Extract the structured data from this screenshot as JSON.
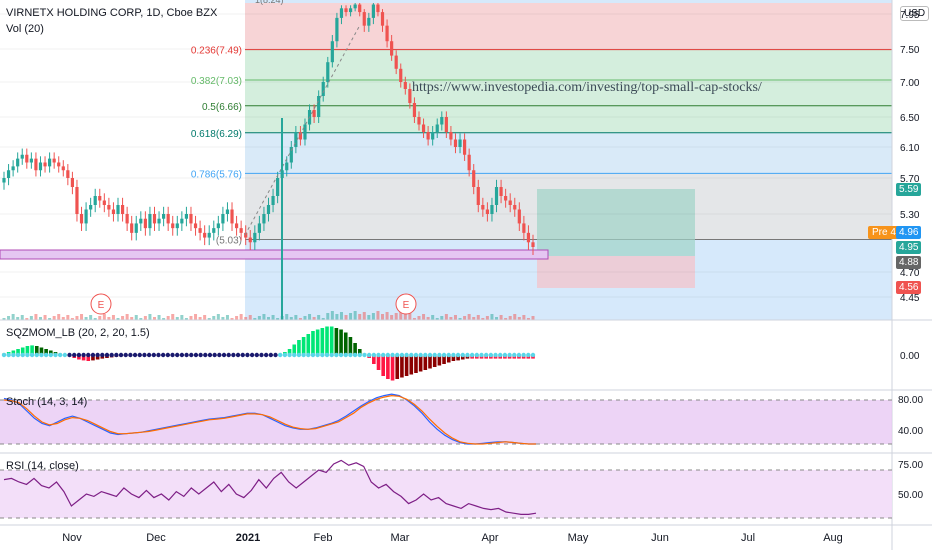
{
  "header": {
    "title": "VIRNETX HOLDING CORP, 1D, Cboe BZX",
    "vol_label": "Vol (20)",
    "currency": "USD"
  },
  "annotation_url": "https://www.investopedia.com/investing/top-small-cap-stocks/",
  "colors": {
    "up": "#26a69a",
    "down": "#ef5350",
    "blue_zone": "#bbdefb",
    "fib_red": "#fbd2d2",
    "fib_green": "#d4eed9",
    "fib_blue": "#d9eaf7",
    "fib_gray": "#e6e6e6",
    "purple": "#b04bb5",
    "stoch_band": "#e8c9f4",
    "rsi_band": "#f2dcf8"
  },
  "chart_data": [
    {
      "type": "candlestick",
      "pane": "price",
      "x_ticks": [
        "Nov",
        "Dec",
        "2021",
        "Feb",
        "Mar",
        "Apr",
        "May",
        "Jun",
        "Jul",
        "Aug"
      ],
      "y_ticks": [
        7.95,
        7.5,
        7.0,
        6.5,
        6.1,
        5.7,
        5.3,
        4.7,
        4.45
      ],
      "price_tags": [
        {
          "label": "5.59",
          "value": 5.59,
          "color": "#26a69a"
        },
        {
          "label": "4.96",
          "value": 4.96,
          "color": "#2196f3"
        },
        {
          "label": "4.95",
          "value": 4.95,
          "color": "#26a69a"
        },
        {
          "label": "4.88",
          "value": 4.88,
          "color": "#666666"
        },
        {
          "label": "4.56",
          "value": 4.56,
          "color": "#ef5350"
        }
      ],
      "premarket": {
        "label": "Pre",
        "value": "4.96"
      },
      "fib_levels": [
        {
          "ratio": "0.236",
          "price": 7.49,
          "label": "0.236(7.49)",
          "color": "#e53935"
        },
        {
          "ratio": "0.382",
          "price": 7.03,
          "label": "0.382(7.03)",
          "color": "#66bb6a"
        },
        {
          "ratio": "0.5",
          "price": 6.66,
          "label": "0.5(6.66)",
          "color": "#2e7d32"
        },
        {
          "ratio": "0.618",
          "price": 6.29,
          "label": "0.618(6.29)",
          "color": "#00796b"
        },
        {
          "ratio": "0.786",
          "price": 5.76,
          "label": "0.786(5.76)",
          "color": "#42a5f5"
        },
        {
          "ratio": "1",
          "price": 5.03,
          "label": "(5.03)",
          "color": "#777777"
        }
      ],
      "fib_top_label": "1(8.24)",
      "earnings_markers": [
        "E",
        "E"
      ],
      "closes": [
        5.7,
        5.8,
        5.85,
        5.95,
        6.0,
        5.9,
        5.95,
        5.8,
        5.9,
        5.85,
        5.95,
        5.9,
        5.85,
        5.8,
        5.7,
        5.6,
        5.3,
        5.2,
        5.35,
        5.4,
        5.5,
        5.45,
        5.4,
        5.35,
        5.3,
        5.4,
        5.3,
        5.2,
        5.1,
        5.2,
        5.25,
        5.15,
        5.3,
        5.2,
        5.25,
        5.3,
        5.2,
        5.15,
        5.2,
        5.25,
        5.3,
        5.2,
        5.15,
        5.1,
        5.05,
        5.1,
        5.15,
        5.2,
        5.3,
        5.35,
        5.2,
        5.15,
        5.1,
        5.05,
        5.0,
        5.1,
        5.2,
        5.3,
        5.4,
        5.5,
        5.7,
        5.8,
        5.9,
        6.1,
        6.3,
        6.2,
        6.4,
        6.6,
        6.5,
        6.8,
        7.0,
        7.3,
        7.6,
        7.9,
        8.1,
        8.0,
        8.1,
        8.2,
        8.0,
        7.8,
        7.9,
        8.2,
        8.0,
        7.8,
        7.6,
        7.4,
        7.2,
        7.0,
        6.9,
        6.7,
        6.5,
        6.4,
        6.3,
        6.2,
        6.3,
        6.4,
        6.5,
        6.3,
        6.2,
        6.1,
        6.2,
        6.0,
        5.8,
        5.6,
        5.4,
        5.35,
        5.3,
        5.4,
        5.6,
        5.5,
        5.45,
        5.4,
        5.35,
        5.2,
        5.1,
        5.0,
        4.95
      ],
      "ylim": [
        4.3,
        8.3
      ]
    },
    {
      "type": "histogram",
      "pane": "squeeze-momentum",
      "label": "SQZMOM_LB (20, 2, 20, 1.5)",
      "y_ticks": [
        "0.00"
      ],
      "values": [
        0.05,
        0.1,
        0.15,
        0.2,
        0.25,
        0.3,
        0.32,
        0.3,
        0.25,
        0.2,
        0.15,
        0.1,
        0.05,
        0.0,
        -0.05,
        -0.1,
        -0.15,
        -0.18,
        -0.2,
        -0.18,
        -0.15,
        -0.12,
        -0.1,
        -0.08,
        -0.06,
        -0.05,
        -0.04,
        -0.03,
        -0.03,
        -0.03,
        -0.03,
        -0.03,
        -0.03,
        -0.03,
        -0.03,
        -0.03,
        -0.03,
        -0.03,
        -0.03,
        -0.03,
        -0.03,
        -0.03,
        -0.03,
        -0.03,
        -0.03,
        -0.03,
        -0.03,
        -0.03,
        -0.03,
        -0.03,
        -0.03,
        -0.03,
        -0.03,
        -0.03,
        -0.03,
        -0.03,
        -0.03,
        -0.03,
        -0.03,
        0.05,
        0.1,
        0.2,
        0.35,
        0.5,
        0.6,
        0.7,
        0.8,
        0.85,
        0.9,
        0.95,
        0.95,
        0.9,
        0.85,
        0.75,
        0.6,
        0.4,
        0.2,
        0.05,
        -0.1,
        -0.3,
        -0.5,
        -0.7,
        -0.8,
        -0.85,
        -0.8,
        -0.75,
        -0.7,
        -0.65,
        -0.6,
        -0.55,
        -0.5,
        -0.45,
        -0.4,
        -0.35,
        -0.3,
        -0.25,
        -0.2,
        -0.18,
        -0.15,
        -0.12,
        -0.12,
        -0.12,
        -0.12,
        -0.12,
        -0.12,
        -0.12,
        -0.12,
        -0.12,
        -0.12,
        -0.12,
        -0.12,
        -0.12,
        -0.12,
        -0.12
      ]
    },
    {
      "type": "line",
      "pane": "stochastic",
      "label": "Stoch (14, 3, 14)",
      "y_ticks": [
        "80.00",
        "40.00"
      ],
      "ylim": [
        10,
        95
      ],
      "band": [
        20,
        80
      ],
      "k": [
        82,
        80,
        75,
        65,
        55,
        48,
        45,
        50,
        55,
        58,
        55,
        50,
        45,
        40,
        35,
        33,
        34,
        35,
        36,
        38,
        40,
        42,
        44,
        46,
        48,
        50,
        52,
        54,
        55,
        56,
        58,
        60,
        62,
        62,
        60,
        55,
        50,
        45,
        42,
        40,
        40,
        42,
        45,
        48,
        52,
        58,
        65,
        72,
        78,
        83,
        86,
        88,
        86,
        80,
        72,
        62,
        50,
        40,
        32,
        26,
        22,
        20,
        20,
        21,
        22,
        23,
        23,
        22,
        21,
        20,
        20
      ],
      "d": [
        80,
        79,
        76,
        68,
        58,
        50,
        46,
        48,
        53,
        56,
        55,
        52,
        47,
        42,
        37,
        34,
        34,
        35,
        36,
        37,
        39,
        41,
        43,
        45,
        47,
        49,
        51,
        53,
        54,
        55,
        57,
        59,
        61,
        61,
        60,
        57,
        52,
        47,
        43,
        41,
        40,
        41,
        44,
        47,
        50,
        56,
        62,
        70,
        76,
        81,
        84,
        86,
        85,
        81,
        74,
        65,
        54,
        44,
        35,
        28,
        23,
        21,
        20,
        20,
        21,
        22,
        23,
        22,
        21,
        20,
        20
      ]
    },
    {
      "type": "line",
      "pane": "rsi",
      "label": "RSI (14, close)",
      "y_ticks": [
        "75.00",
        "50.00"
      ],
      "ylim": [
        25,
        85
      ],
      "band": [
        30,
        70
      ],
      "values": [
        62,
        63,
        60,
        58,
        63,
        57,
        55,
        60,
        52,
        40,
        45,
        50,
        48,
        52,
        50,
        48,
        55,
        50,
        47,
        53,
        47,
        50,
        45,
        52,
        48,
        55,
        50,
        55,
        60,
        52,
        58,
        50,
        47,
        53,
        62,
        55,
        63,
        68,
        60,
        55,
        60,
        65,
        70,
        68,
        75,
        78,
        74,
        76,
        73,
        60,
        55,
        58,
        52,
        48,
        42,
        45,
        50,
        45,
        47,
        42,
        40,
        38,
        42,
        40,
        38,
        37,
        38,
        35,
        34,
        33,
        33,
        34
      ]
    }
  ]
}
